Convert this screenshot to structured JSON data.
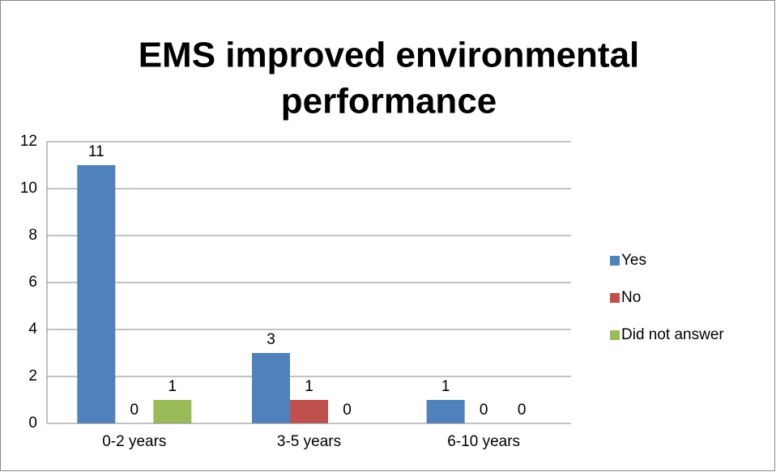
{
  "chart_data": {
    "type": "bar",
    "title": [
      "EMS improved environmental",
      "performance"
    ],
    "categories": [
      "0-2 years",
      "3-5 years",
      "6-10 years"
    ],
    "series": [
      {
        "name": "Yes",
        "color": "#4f81bd",
        "values": [
          11,
          3,
          1
        ]
      },
      {
        "name": "No",
        "color": "#c0504d",
        "values": [
          0,
          1,
          0
        ]
      },
      {
        "name": "Did not answer",
        "color": "#9bbb59",
        "values": [
          1,
          0,
          0
        ]
      }
    ],
    "ylim": [
      0,
      12
    ],
    "yticks": [
      0,
      2,
      4,
      6,
      8,
      10,
      12
    ],
    "grid": true,
    "legend": "right"
  }
}
